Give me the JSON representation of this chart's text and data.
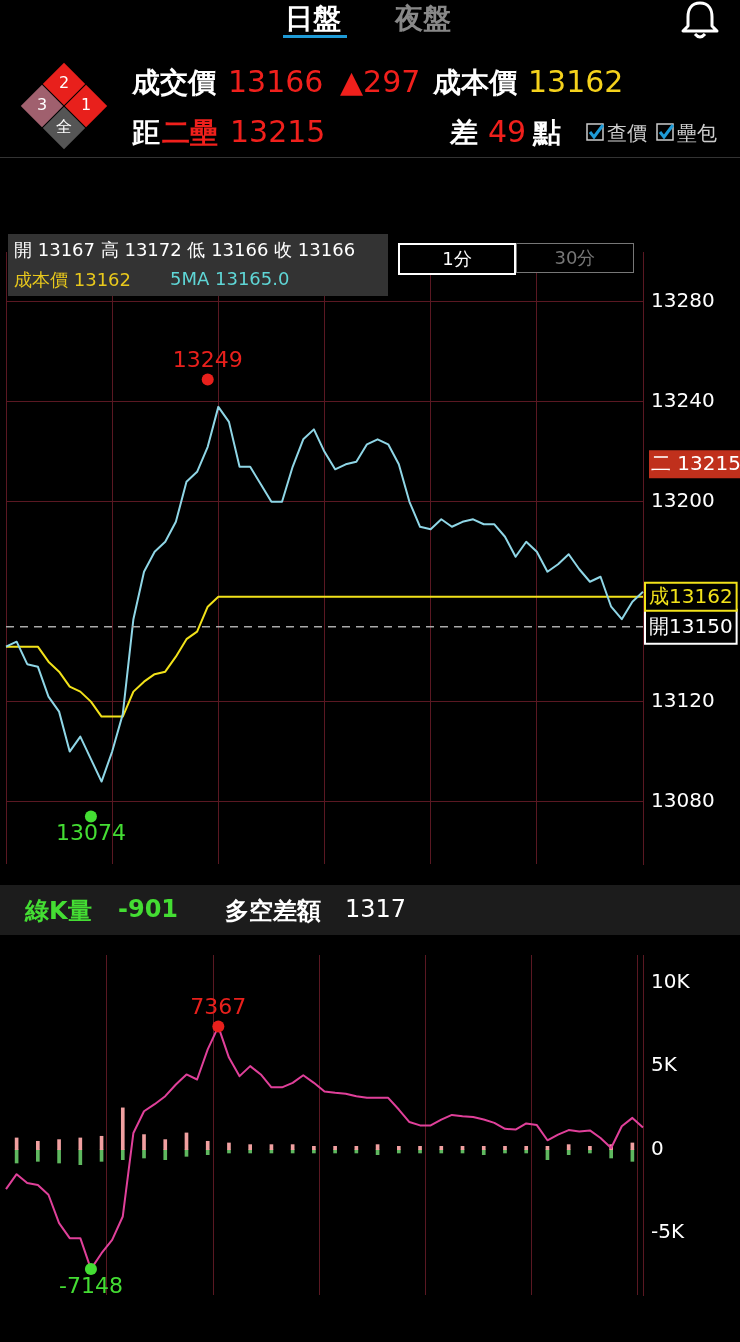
{
  "chart_data": [
    {
      "type": "other",
      "annotations": [
        "日盤",
        "夜盤",
        "2",
        "1",
        "3",
        "全",
        "成交價",
        "13166",
        "▲297",
        "成本價",
        "13162",
        "距",
        "二壘",
        "13215",
        "差",
        "49",
        "點",
        "查價",
        "壘包"
      ]
    },
    {
      "type": "line",
      "tick_labels": "y",
      "grid": true,
      "legend": false,
      "marker": "none",
      "ylim": [
        13055,
        13300
      ],
      "yticks": [
        13080,
        13120,
        13200,
        {
          "value": 13215,
          "label": "二 13215"
        },
        13240,
        13280
      ],
      "categories": [
        null,
        null,
        null,
        null,
        null,
        null,
        null,
        null,
        null,
        null,
        null,
        null,
        null,
        null,
        null,
        null,
        null,
        null,
        null,
        null,
        null,
        null,
        null,
        null,
        null,
        null,
        null,
        null,
        null,
        null,
        null,
        null,
        null,
        null,
        null,
        null,
        null,
        null,
        null,
        null,
        null,
        null,
        null,
        null,
        null,
        null,
        null,
        null,
        null,
        null,
        null,
        null,
        null,
        null,
        null,
        null,
        null,
        null,
        null,
        null,
        null
      ],
      "series": [
        {
          "color": "#8fd6e6",
          "values": [
            13142,
            13144,
            13135,
            13134,
            13122,
            13116,
            13100,
            13106,
            13097,
            13088,
            13100,
            13115,
            13153,
            13172,
            13180,
            13184,
            13192,
            13208,
            13212,
            13222,
            13238,
            13232,
            13214,
            13214,
            13207,
            13200,
            13200,
            13214,
            13225,
            13229,
            13220,
            13213,
            13215,
            13216,
            13223,
            13225,
            13223,
            13215,
            13200,
            13190,
            13189,
            13193,
            13190,
            13192,
            13193,
            13191,
            13191,
            13186,
            13178,
            13184,
            13180,
            13172,
            13175,
            13179,
            13173,
            13168,
            13170,
            13158,
            13153,
            13160,
            13164
          ]
        },
        {
          "color": "#f2e21a",
          "values": [
            13142,
            13142,
            13142,
            13142,
            13136,
            13132,
            13126,
            13124,
            13120,
            13114,
            13114,
            13114,
            13124,
            13128,
            13131,
            13132,
            13138,
            13145,
            13148,
            13158,
            13162,
            13162,
            13162,
            13162,
            13162,
            13162,
            13162,
            13162,
            13162,
            13162,
            13162,
            13162,
            13162,
            13162,
            13162,
            13162,
            13162,
            13162,
            13162,
            13162,
            13162,
            13162,
            13162,
            13162,
            13162,
            13162,
            13162,
            13162,
            13162,
            13162,
            13162,
            13162,
            13162,
            13162,
            13162,
            13162,
            13162,
            13162,
            13162,
            13162,
            13162
          ],
          "value_labels": [
            null,
            null,
            null,
            null,
            null,
            null,
            null,
            null,
            null,
            null,
            null,
            null,
            null,
            null,
            null,
            null,
            null,
            null,
            null,
            null,
            null,
            null,
            null,
            null,
            null,
            null,
            null,
            null,
            null,
            null,
            null,
            null,
            null,
            null,
            null,
            null,
            null,
            null,
            null,
            null,
            null,
            null,
            null,
            null,
            null,
            null,
            null,
            null,
            null,
            null,
            null,
            null,
            null,
            null,
            null,
            null,
            null,
            null,
            null,
            null,
            "成13162"
          ]
        },
        {
          "type": "scatter",
          "marker": "circle",
          "color": "#e8201c",
          "values": [
            null,
            null,
            null,
            null,
            null,
            null,
            null,
            null,
            null,
            null,
            null,
            null,
            null,
            null,
            null,
            null,
            null,
            null,
            null,
            13249,
            null,
            null,
            null,
            null,
            null,
            null,
            null,
            null,
            null,
            null,
            null,
            null,
            null,
            null,
            null,
            null,
            null,
            null,
            null,
            null,
            null,
            null,
            null,
            null,
            null,
            null,
            null,
            null,
            null,
            null,
            null,
            null,
            null,
            null,
            null,
            null,
            null,
            null,
            null,
            null,
            null
          ],
          "value_labels": [
            null,
            null,
            null,
            null,
            null,
            null,
            null,
            null,
            null,
            null,
            null,
            null,
            null,
            null,
            null,
            null,
            null,
            null,
            null,
            "13249",
            null,
            null,
            null,
            null,
            null,
            null,
            null,
            null,
            null,
            null,
            null,
            null,
            null,
            null,
            null,
            null,
            null,
            null,
            null,
            null,
            null,
            null,
            null,
            null,
            null,
            null,
            null,
            null,
            null,
            null,
            null,
            null,
            null,
            null,
            null,
            null,
            null,
            null,
            null,
            null,
            null
          ]
        },
        {
          "type": "scatter",
          "marker": "circle",
          "color": "#44dd33",
          "values": [
            null,
            null,
            null,
            null,
            null,
            null,
            null,
            null,
            13074,
            null,
            null,
            null,
            null,
            null,
            null,
            null,
            null,
            null,
            null,
            null,
            null,
            null,
            null,
            null,
            null,
            null,
            null,
            null,
            null,
            null,
            null,
            null,
            null,
            null,
            null,
            null,
            null,
            null,
            null,
            null,
            null,
            null,
            null,
            null,
            null,
            null,
            null,
            null,
            null,
            null,
            null,
            null,
            null,
            null,
            null,
            null,
            null,
            null,
            null,
            null,
            null
          ],
          "value_labels": [
            null,
            null,
            null,
            null,
            null,
            null,
            null,
            null,
            "13074",
            null,
            null,
            null,
            null,
            null,
            null,
            null,
            null,
            null,
            null,
            null,
            null,
            null,
            null,
            null,
            null,
            null,
            null,
            null,
            null,
            null,
            null,
            null,
            null,
            null,
            null,
            null,
            null,
            null,
            null,
            null,
            null,
            null,
            null,
            null,
            null,
            null,
            null,
            null,
            null,
            null,
            null,
            null,
            null,
            null,
            null,
            null,
            null,
            null,
            null,
            null,
            null
          ]
        }
      ],
      "ref_lines": [
        {
          "axis": "y",
          "value": 13150,
          "label": "開13150",
          "color": "#aaaaaa",
          "line_style": "dashed"
        }
      ],
      "annotations": [
        "開 13167 高 13172 低 13166 收 13166",
        "成本價 13162",
        "5MA 13165.0",
        "1分",
        "30分"
      ]
    },
    {
      "type": "line",
      "tick_labels": "y",
      "grid": "x",
      "legend": false,
      "marker": "none",
      "ylim": [
        -8700,
        11650
      ],
      "yticks": [
        {
          "value": -5000,
          "label": "-5K"
        },
        0,
        {
          "value": 5000,
          "label": "5K"
        },
        {
          "value": 10000,
          "label": "10K"
        }
      ],
      "categories": [
        null,
        null,
        null,
        null,
        null,
        null,
        null,
        null,
        null,
        null,
        null,
        null,
        null,
        null,
        null,
        null,
        null,
        null,
        null,
        null,
        null,
        null,
        null,
        null,
        null,
        null,
        null,
        null,
        null,
        null,
        null,
        null,
        null,
        null,
        null,
        null,
        null,
        null,
        null,
        null,
        null,
        null,
        null,
        null,
        null,
        null,
        null,
        null,
        null,
        null,
        null,
        null,
        null,
        null,
        null,
        null,
        null,
        null,
        null,
        null,
        null
      ],
      "series": [
        {
          "type": "line",
          "color": "#e0409a",
          "values": [
            -2360,
            -1470,
            -2000,
            -2110,
            -2700,
            -4400,
            -5300,
            -5300,
            -7148,
            -6200,
            -5400,
            -4000,
            1000,
            2300,
            2720,
            3200,
            3900,
            4500,
            4200,
            6000,
            7367,
            5510,
            4400,
            5000,
            4500,
            3730,
            3730,
            4000,
            4450,
            4000,
            3480,
            3400,
            3350,
            3200,
            3100,
            3100,
            3100,
            2400,
            1650,
            1450,
            1450,
            1800,
            2080,
            2000,
            1950,
            1800,
            1600,
            1250,
            1200,
            1570,
            1470,
            560,
            900,
            1170,
            1090,
            1150,
            700,
            100,
            1400,
            1900,
            1320
          ]
        },
        {
          "type": "bar",
          "color": "#f0a0a0",
          "values": [
            null,
            700,
            null,
            500,
            null,
            600,
            null,
            700,
            null,
            800,
            null,
            2500,
            null,
            900,
            null,
            600,
            null,
            1000,
            null,
            500,
            null,
            400,
            null,
            300,
            null,
            300,
            null,
            300,
            null,
            200,
            null,
            200,
            null,
            200,
            null,
            300,
            null,
            200,
            null,
            200,
            null,
            200,
            null,
            200,
            null,
            200,
            null,
            200,
            null,
            200,
            null,
            200,
            null,
            300,
            null,
            200,
            null,
            300,
            null,
            400,
            null
          ]
        },
        {
          "type": "bar",
          "color": "#5fb85f",
          "values": [
            null,
            -800,
            null,
            -700,
            null,
            -800,
            null,
            -900,
            null,
            -700,
            null,
            -600,
            null,
            -500,
            null,
            -600,
            null,
            -400,
            null,
            -300,
            null,
            -200,
            null,
            -200,
            null,
            -200,
            null,
            -200,
            null,
            -200,
            null,
            -200,
            null,
            -200,
            null,
            -300,
            null,
            -200,
            null,
            -200,
            null,
            -200,
            null,
            -200,
            null,
            -300,
            null,
            -200,
            null,
            -200,
            null,
            -600,
            null,
            -300,
            null,
            -200,
            null,
            -500,
            null,
            -700,
            null
          ]
        },
        {
          "type": "scatter",
          "marker": "circle",
          "color": "#e8201c",
          "values": [
            null,
            null,
            null,
            null,
            null,
            null,
            null,
            null,
            null,
            null,
            null,
            null,
            null,
            null,
            null,
            null,
            null,
            null,
            null,
            null,
            7367,
            null,
            null,
            null,
            null,
            null,
            null,
            null,
            null,
            null,
            null,
            null,
            null,
            null,
            null,
            null,
            null,
            null,
            null,
            null,
            null,
            null,
            null,
            null,
            null,
            null,
            null,
            null,
            null,
            null,
            null,
            null,
            null,
            null,
            null,
            null,
            null,
            null,
            null,
            null,
            null
          ],
          "value_labels": [
            null,
            null,
            null,
            null,
            null,
            null,
            null,
            null,
            null,
            null,
            null,
            null,
            null,
            null,
            null,
            null,
            null,
            null,
            null,
            null,
            "7367",
            null,
            null,
            null,
            null,
            null,
            null,
            null,
            null,
            null,
            null,
            null,
            null,
            null,
            null,
            null,
            null,
            null,
            null,
            null,
            null,
            null,
            null,
            null,
            null,
            null,
            null,
            null,
            null,
            null,
            null,
            null,
            null,
            null,
            null,
            null,
            null,
            null,
            null,
            null,
            null
          ]
        },
        {
          "type": "scatter",
          "marker": "circle",
          "color": "#44dd33",
          "values": [
            null,
            null,
            null,
            null,
            null,
            null,
            null,
            null,
            -7148,
            null,
            null,
            null,
            null,
            null,
            null,
            null,
            null,
            null,
            null,
            null,
            null,
            null,
            null,
            null,
            null,
            null,
            null,
            null,
            null,
            null,
            null,
            null,
            null,
            null,
            null,
            null,
            null,
            null,
            null,
            null,
            null,
            null,
            null,
            null,
            null,
            null,
            null,
            null,
            null,
            null,
            null,
            null,
            null,
            null,
            null,
            null,
            null,
            null,
            null,
            null,
            null
          ],
          "value_labels": [
            null,
            null,
            null,
            null,
            null,
            null,
            null,
            null,
            "-7148",
            null,
            null,
            null,
            null,
            null,
            null,
            null,
            null,
            null,
            null,
            null,
            null,
            null,
            null,
            null,
            null,
            null,
            null,
            null,
            null,
            null,
            null,
            null,
            null,
            null,
            null,
            null,
            null,
            null,
            null,
            null,
            null,
            null,
            null,
            null,
            null,
            null,
            null,
            null,
            null,
            null,
            null,
            null,
            null,
            null,
            null,
            null,
            null,
            null,
            null,
            null,
            null
          ]
        }
      ],
      "annotations": [
        "綠K量",
        "-901",
        "多空差額",
        "1317"
      ]
    }
  ]
}
